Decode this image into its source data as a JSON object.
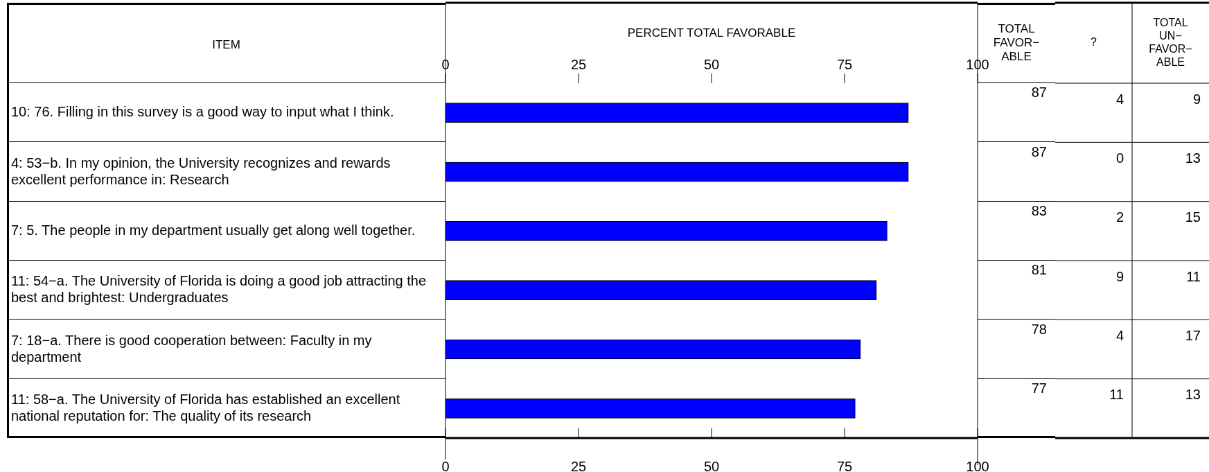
{
  "chart_data": [
    {
      "type": "bar",
      "orientation": "horizontal",
      "xlabel": "PERCENT TOTAL FAVORABLE",
      "ylabel": "ITEM",
      "categories": [
        "10: 76. Filling in this survey is a good way to input what I think.",
        "4: 53−b. In my opinion, the University recognizes and rewards excellent performance in: Research",
        "7: 5. The people in my department usually get along well together.",
        "11: 54−a. The University of Florida is doing a good job attracting the best and brightest: Undergraduates",
        "7: 18−a. There is good cooperation between: Faculty in my department",
        "11: 58−a. The University of Florida has established an excellent national reputation for: The quality of its research"
      ],
      "values": [
        87,
        87,
        83,
        81,
        78,
        77
      ],
      "color": "#0000ff",
      "data_labels": true,
      "annotations": [
        "TOTAL FAVOR−ABLE"
      ],
      "xlim": [
        0,
        100
      ],
      "xticks": [
        0,
        25,
        50,
        75,
        100
      ],
      "x2lim": [
        0,
        100
      ],
      "x2ticks": [
        0,
        25,
        50,
        75,
        100
      ]
    },
    {
      "type": "other",
      "categories": [
        "?",
        "TOTAL UN−FAVOR−ABLE"
      ],
      "annotations": [
        "4",
        "9",
        "0",
        "13",
        "2",
        "15",
        "9",
        "11",
        "4",
        "17",
        "11",
        "13"
      ]
    }
  ]
}
